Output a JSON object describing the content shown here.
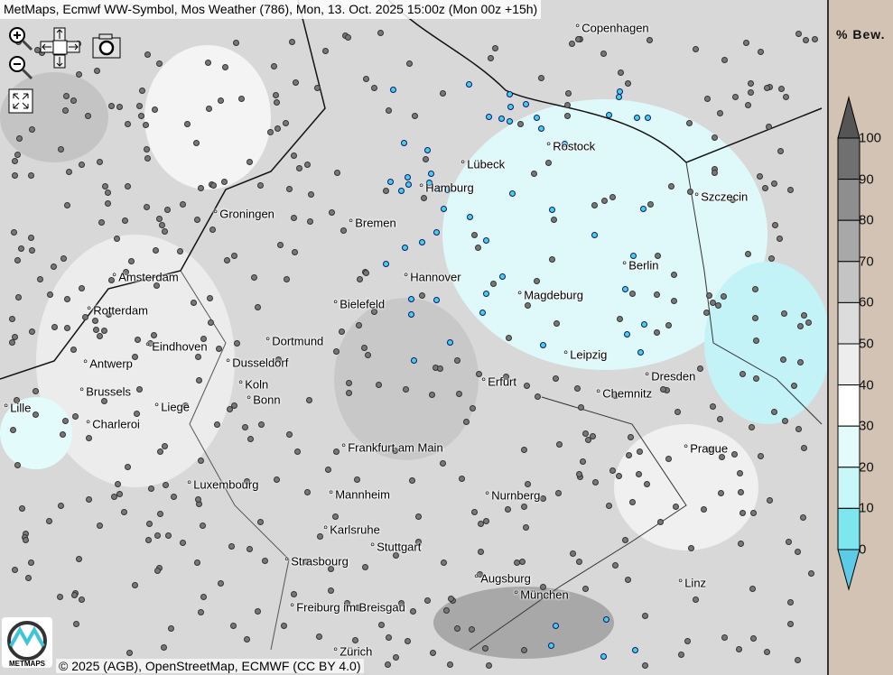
{
  "title": "MetMaps, Ecmwf WW-Symbol, Mos Weather (786), Mon, 13. Oct. 2025 15:00z (Mon 00z +15h)",
  "toolbar": {
    "zoom_in": "zoom-in-icon",
    "zoom_out": "zoom-out-icon",
    "pan": "arrows-icon",
    "screenshot": "camera-icon",
    "fullscreen": "fullscreen-icon"
  },
  "cities": [
    {
      "name": "Copenhagen"
    },
    {
      "name": "Rostock"
    },
    {
      "name": "Lübeck"
    },
    {
      "name": "Hamburg"
    },
    {
      "name": "Szczecin"
    },
    {
      "name": "Groningen"
    },
    {
      "name": "Bremen"
    },
    {
      "name": "Berlin"
    },
    {
      "name": "Amsterdam"
    },
    {
      "name": "Hannover"
    },
    {
      "name": "Magdeburg"
    },
    {
      "name": "Bielefeld"
    },
    {
      "name": "Rotterdam"
    },
    {
      "name": "Dortmund"
    },
    {
      "name": "Eindhoven"
    },
    {
      "name": "Leipzig"
    },
    {
      "name": "Antwerp"
    },
    {
      "name": "Dusseldorf"
    },
    {
      "name": "Dresden"
    },
    {
      "name": "Erfurt"
    },
    {
      "name": "Koln"
    },
    {
      "name": "Brussels"
    },
    {
      "name": "Chemnitz"
    },
    {
      "name": "Bonn"
    },
    {
      "name": "Liege"
    },
    {
      "name": "Lille"
    },
    {
      "name": "Charleroi"
    },
    {
      "name": "Prague"
    },
    {
      "name": "Frankfurt am Main"
    },
    {
      "name": "Luxembourg"
    },
    {
      "name": "Mannheim"
    },
    {
      "name": "Nurnberg"
    },
    {
      "name": "Karlsruhe"
    },
    {
      "name": "Stuttgart"
    },
    {
      "name": "Strasbourg"
    },
    {
      "name": "Augsburg"
    },
    {
      "name": "Linz"
    },
    {
      "name": "München"
    },
    {
      "name": "Freiburg im Breisgau"
    },
    {
      "name": "Zürich"
    }
  ],
  "copyright": "© 2025 (AGB), OpenStreetMap, ECMWF (CC BY 4.0)",
  "logo_text": "METMAPS",
  "legend": {
    "title": "% Bew.",
    "labels": [
      "100",
      "90",
      "80",
      "70",
      "60",
      "50",
      "40",
      "30",
      "20",
      "10",
      "0"
    ],
    "colors": [
      "#707070",
      "#8e8e8e",
      "#a8a8a8",
      "#c4c4c4",
      "#dcdcdc",
      "#ededed",
      "#ffffff",
      "#e4fbfb",
      "#c8f7f9",
      "#a8f1f5",
      "#7de6ee"
    ],
    "top_arrow": "#555555",
    "bottom_arrow": "#5ccbe8"
  }
}
